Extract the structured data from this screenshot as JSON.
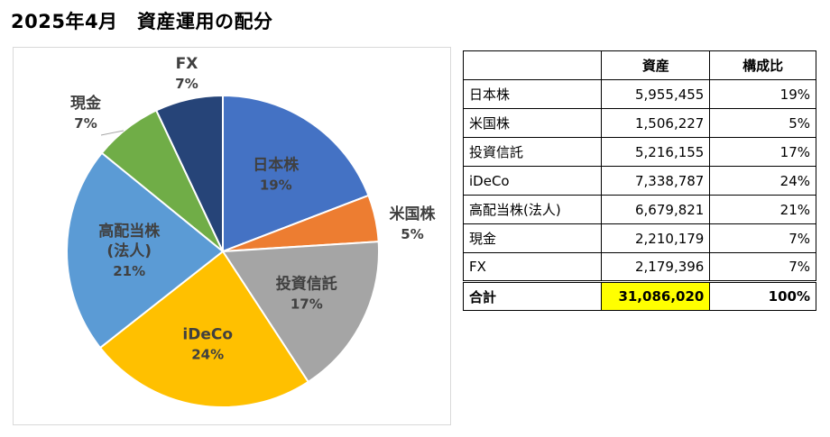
{
  "page_title": "2025年4月　資産運用の配分",
  "colors": {
    "日本株": "#4472c4",
    "米国株": "#ed7d31",
    "投資信託": "#a5a5a5",
    "iDeCo": "#ffc000",
    "高配当株(法人)": "#5b9bd5",
    "現金": "#70ad47",
    "FX": "#264478",
    "highlight": "#ffff00"
  },
  "chart_data": {
    "type": "pie",
    "slices": [
      {
        "label": "日本株",
        "label_lines": [
          "日本株"
        ],
        "value": 5955455,
        "pct": "19%"
      },
      {
        "label": "米国株",
        "label_lines": [
          "米国株"
        ],
        "value": 1506227,
        "pct": "5%"
      },
      {
        "label": "投資信託",
        "label_lines": [
          "投資信託"
        ],
        "value": 5216155,
        "pct": "17%"
      },
      {
        "label": "iDeCo",
        "label_lines": [
          "iDeCo"
        ],
        "value": 7338787,
        "pct": "24%"
      },
      {
        "label": "高配当株(法人)",
        "label_lines": [
          "高配当株",
          "(法人)"
        ],
        "value": 6679821,
        "pct": "21%"
      },
      {
        "label": "現金",
        "label_lines": [
          "現金"
        ],
        "value": 2210179,
        "pct": "7%"
      },
      {
        "label": "FX",
        "label_lines": [
          "FX"
        ],
        "value": 2179396,
        "pct": "7%"
      }
    ]
  },
  "table": {
    "headers": [
      "",
      "資産",
      "構成比"
    ],
    "rows": [
      {
        "name": "日本株",
        "amount": "5,955,455",
        "ratio": "19%"
      },
      {
        "name": "米国株",
        "amount": "1,506,227",
        "ratio": "5%"
      },
      {
        "name": "投資信託",
        "amount": "5,216,155",
        "ratio": "17%"
      },
      {
        "name": "iDeCo",
        "amount": "7,338,787",
        "ratio": "24%"
      },
      {
        "name": "高配当株(法人)",
        "amount": "6,679,821",
        "ratio": "21%"
      },
      {
        "name": "現金",
        "amount": "2,210,179",
        "ratio": "7%"
      },
      {
        "name": "FX",
        "amount": "2,179,396",
        "ratio": "7%"
      }
    ],
    "total": {
      "name": "合計",
      "amount": "31,086,020",
      "ratio": "100%"
    }
  }
}
